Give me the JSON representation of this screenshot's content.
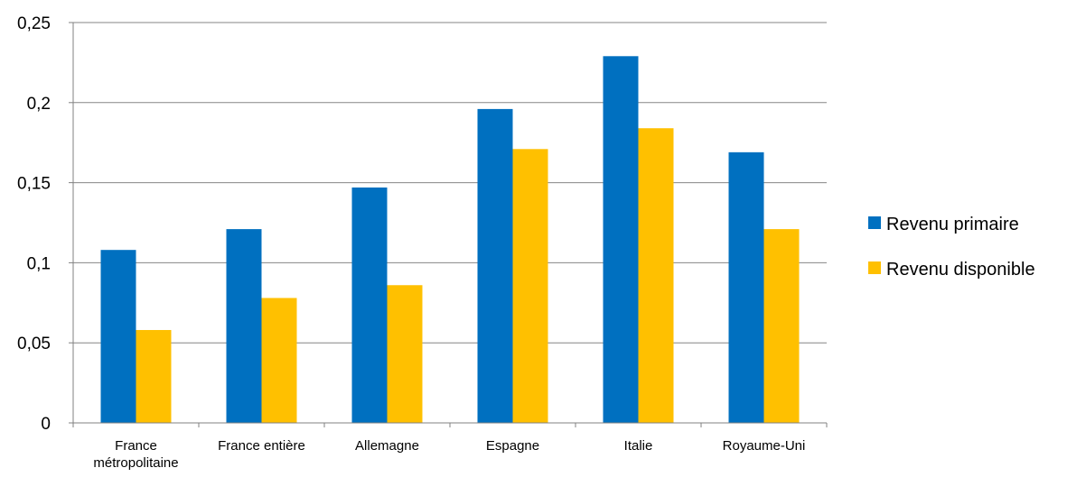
{
  "chart_data": {
    "type": "bar",
    "categories": [
      [
        "France",
        "métropolitaine"
      ],
      [
        "France entière"
      ],
      [
        "Allemagne"
      ],
      [
        "Espagne"
      ],
      [
        "Italie"
      ],
      [
        "Royaume-Uni"
      ]
    ],
    "series": [
      {
        "name": "Revenu primaire",
        "color": "#0070C0",
        "values": [
          0.108,
          0.121,
          0.147,
          0.196,
          0.229,
          0.169
        ]
      },
      {
        "name": "Revenu disponible",
        "color": "#FFC000",
        "values": [
          0.058,
          0.078,
          0.086,
          0.171,
          0.184,
          0.121
        ]
      }
    ],
    "yticks": [
      "0",
      "0,05",
      "0,1",
      "0,15",
      "0,2",
      "0,25"
    ],
    "ylim": [
      0,
      0.25
    ],
    "grid": true,
    "legend_position": "right"
  }
}
